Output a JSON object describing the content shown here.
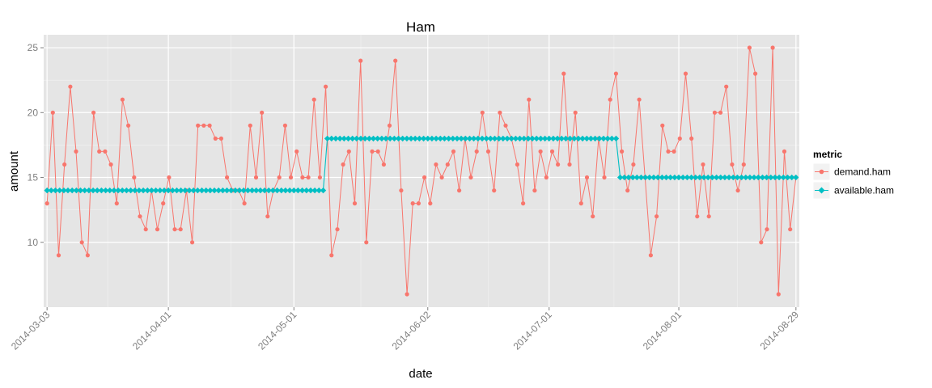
{
  "chart_data": {
    "type": "line",
    "title": "Ham",
    "xlabel": "date",
    "ylabel": "amount",
    "x_start": "2014-03-03",
    "x_ticks": [
      "2014-03-03",
      "2014-04-01",
      "2014-05-01",
      "2014-06-02",
      "2014-07-01",
      "2014-08-01",
      "2014-08-29"
    ],
    "y_ticks": [
      10,
      15,
      20,
      25
    ],
    "ylim": [
      5,
      26
    ],
    "xlim": [
      "2014-03-03",
      "2014-08-29"
    ],
    "grid": true,
    "legend": {
      "title": "metric",
      "position": "right"
    },
    "series": [
      {
        "name": "demand.ham",
        "color": "#F8766D",
        "values": [
          13,
          20,
          9,
          16,
          22,
          17,
          10,
          9,
          20,
          17,
          17,
          16,
          13,
          21,
          19,
          15,
          12,
          11,
          14,
          11,
          13,
          15,
          11,
          11,
          14,
          10,
          19,
          19,
          19,
          18,
          18,
          15,
          14,
          14,
          13,
          19,
          15,
          20,
          12,
          14,
          15,
          19,
          15,
          17,
          15,
          15,
          21,
          15,
          22,
          9,
          11,
          16,
          17,
          13,
          24,
          10,
          17,
          17,
          16,
          19,
          24,
          14,
          6,
          13,
          13,
          15,
          13,
          16,
          15,
          16,
          17,
          14,
          18,
          15,
          17,
          20,
          17,
          14,
          20,
          19,
          18,
          16,
          13,
          21,
          14,
          17,
          15,
          17,
          16,
          23,
          16,
          20,
          13,
          15,
          12,
          18,
          15,
          21,
          23,
          17,
          14,
          16,
          21,
          15,
          9,
          12,
          19,
          17,
          17,
          18,
          23,
          18,
          12,
          16,
          12,
          20,
          20,
          22,
          16,
          14,
          16,
          25,
          23,
          10,
          11,
          25,
          6,
          17,
          11,
          15
        ]
      },
      {
        "name": "available.ham",
        "color": "#00BFC4",
        "segments": [
          {
            "from": "2014-03-03",
            "to": "2014-05-08",
            "value": 14
          },
          {
            "from": "2014-05-09",
            "to": "2014-07-17",
            "value": 18
          },
          {
            "from": "2014-07-18",
            "to": "2014-08-29",
            "value": 15
          }
        ]
      }
    ]
  }
}
